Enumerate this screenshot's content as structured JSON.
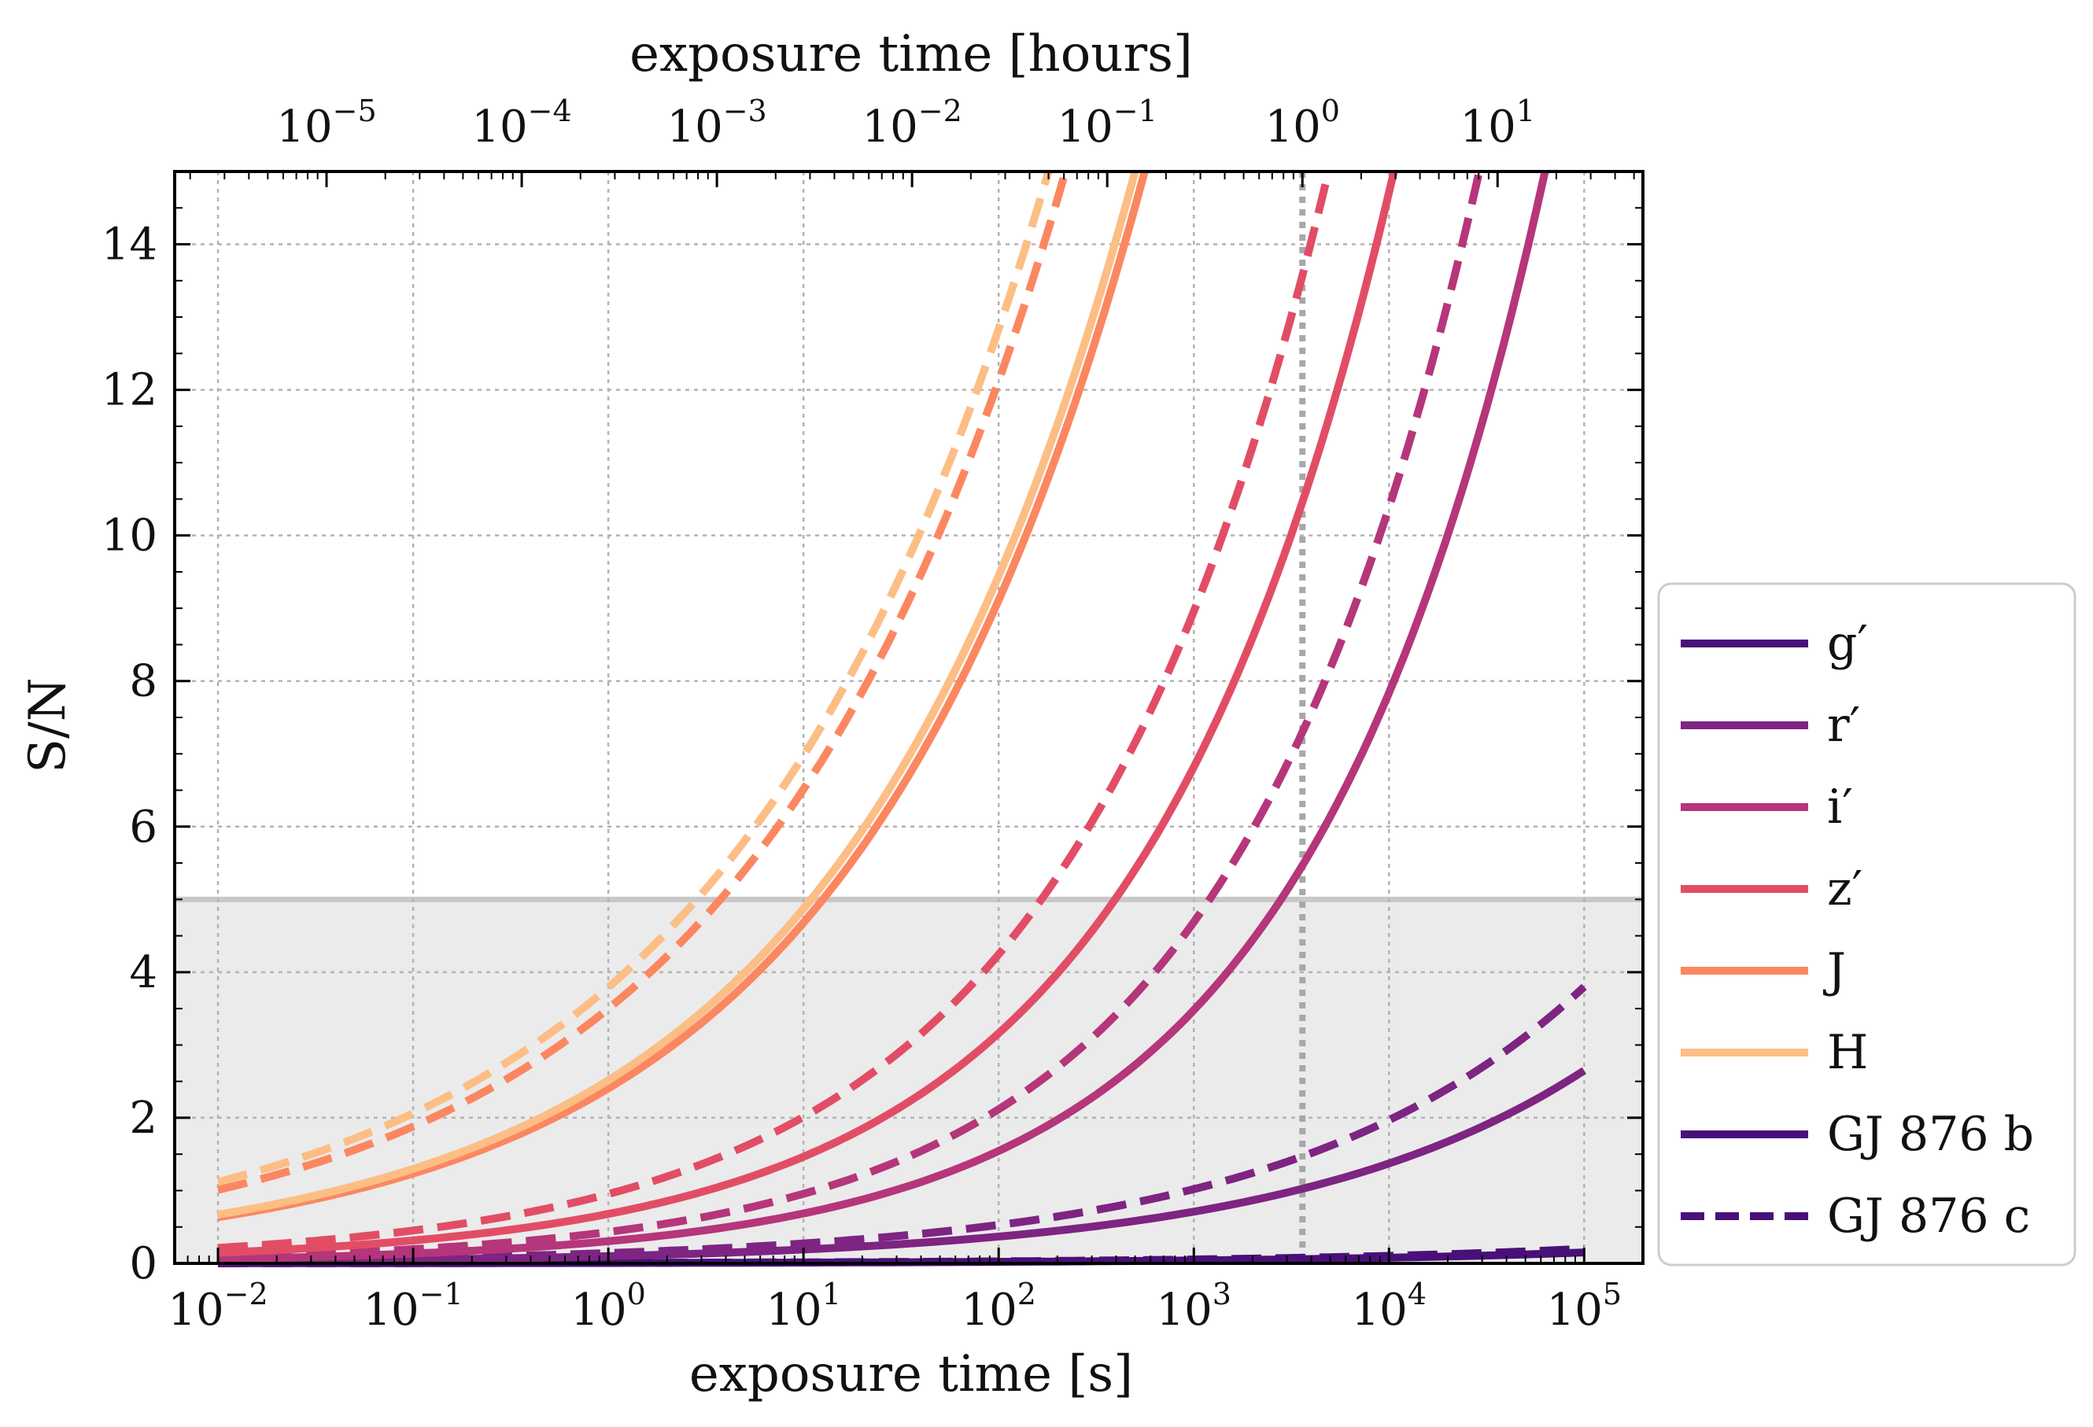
{
  "chart_data": {
    "type": "line",
    "title": "",
    "xlabel": "exposure time [s]",
    "ylabel": "S/N",
    "xlabel_top": "exposure time [hours]",
    "xscale": "log",
    "xlim": [
      0.006,
      200000
    ],
    "ylim": [
      0,
      15
    ],
    "grid": true,
    "threshold": 5,
    "reference_time_s": 3600,
    "x_ticks": [
      {
        "base": "10",
        "exp": "−2",
        "value": 0.01
      },
      {
        "base": "10",
        "exp": "−1",
        "value": 0.1
      },
      {
        "base": "10",
        "exp": "0",
        "value": 1
      },
      {
        "base": "10",
        "exp": "1",
        "value": 10
      },
      {
        "base": "10",
        "exp": "2",
        "value": 100
      },
      {
        "base": "10",
        "exp": "3",
        "value": 1000
      },
      {
        "base": "10",
        "exp": "4",
        "value": 10000
      },
      {
        "base": "10",
        "exp": "5",
        "value": 100000
      }
    ],
    "x_ticks_top": [
      {
        "base": "10",
        "exp": "−5",
        "value": 1e-05
      },
      {
        "base": "10",
        "exp": "−4",
        "value": 0.0001
      },
      {
        "base": "10",
        "exp": "−3",
        "value": 0.001
      },
      {
        "base": "10",
        "exp": "−2",
        "value": 0.01
      },
      {
        "base": "10",
        "exp": "−1",
        "value": 0.1
      },
      {
        "base": "10",
        "exp": "0",
        "value": 1
      },
      {
        "base": "10",
        "exp": "1",
        "value": 10
      }
    ],
    "y_ticks": [
      "0",
      "2",
      "4",
      "6",
      "8",
      "10",
      "12",
      "14"
    ],
    "legend_position": "outside-right-bottom",
    "legend": [
      {
        "label": "g′",
        "color": "#4a1079",
        "dash": "solid"
      },
      {
        "label": "r′",
        "color": "#7e2482",
        "dash": "solid"
      },
      {
        "label": "i′",
        "color": "#b5367a",
        "dash": "solid"
      },
      {
        "label": "z′",
        "color": "#e24d66",
        "dash": "solid"
      },
      {
        "label": "J",
        "color": "#fb8761",
        "dash": "solid"
      },
      {
        "label": "H",
        "color": "#fcbe85",
        "dash": "solid"
      },
      {
        "label": "GJ 876 b",
        "color": "#4a1079",
        "dash": "solid"
      },
      {
        "label": "GJ 876 c",
        "color": "#4a1079",
        "dash": "dashed"
      }
    ],
    "x_samples": [
      0.01,
      0.1,
      1,
      10,
      100,
      1000,
      10000,
      100000
    ],
    "series": [
      {
        "name": "g′ GJ 876 b",
        "color": "#4a1079",
        "dash": "solid",
        "x": [
          0.01,
          100000
        ],
        "y": [
          0.0015,
          0.15
        ]
      },
      {
        "name": "g′ GJ 876 c",
        "color": "#4a1079",
        "dash": "dashed",
        "x": [
          0.01,
          100000
        ],
        "y": [
          0.002,
          0.2
        ]
      },
      {
        "name": "r′ GJ 876 b",
        "color": "#7e2482",
        "dash": "solid",
        "x": [
          0.01,
          100000
        ],
        "y": [
          0.0265,
          2.65
        ]
      },
      {
        "name": "r′ GJ 876 c",
        "color": "#7e2482",
        "dash": "dashed",
        "x": [
          0.01,
          100000
        ],
        "y": [
          0.038,
          3.8
        ]
      },
      {
        "name": "i′ GJ 876 b",
        "color": "#b5367a",
        "dash": "solid",
        "x": [
          0.01,
          63000
        ],
        "y": [
          0.06,
          15
        ]
      },
      {
        "name": "i′ GJ 876 c",
        "color": "#b5367a",
        "dash": "dashed",
        "x": [
          0.01,
          29000
        ],
        "y": [
          0.088,
          15
        ]
      },
      {
        "name": "z′ GJ 876 b",
        "color": "#e24d66",
        "dash": "solid",
        "x": [
          0.01,
          10600
        ],
        "y": [
          0.146,
          15
        ]
      },
      {
        "name": "z′ GJ 876 c",
        "color": "#e24d66",
        "dash": "dashed",
        "x": [
          0.01,
          4900
        ],
        "y": [
          0.214,
          15
        ]
      },
      {
        "name": "J GJ 876 b",
        "color": "#fb8761",
        "dash": "solid",
        "x": [
          0.01,
          560
        ],
        "y": [
          0.634,
          15
        ]
      },
      {
        "name": "J GJ 876 c",
        "color": "#fb8761",
        "dash": "dashed",
        "x": [
          0.01,
          220
        ],
        "y": [
          1.01,
          15
        ]
      },
      {
        "name": "H GJ 876 b",
        "color": "#fcbe85",
        "dash": "solid",
        "x": [
          0.01,
          500
        ],
        "y": [
          0.67,
          15
        ]
      },
      {
        "name": "H GJ 876 c",
        "color": "#fcbe85",
        "dash": "dashed",
        "x": [
          0.01,
          180
        ],
        "y": [
          1.12,
          15
        ]
      }
    ]
  }
}
